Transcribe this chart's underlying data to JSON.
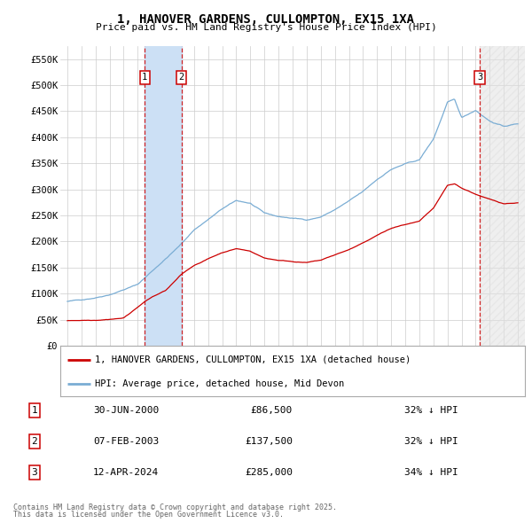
{
  "title": "1, HANOVER GARDENS, CULLOMPTON, EX15 1XA",
  "subtitle": "Price paid vs. HM Land Registry's House Price Index (HPI)",
  "ylim": [
    0,
    575000
  ],
  "yticks": [
    0,
    50000,
    100000,
    150000,
    200000,
    250000,
    300000,
    350000,
    400000,
    450000,
    500000,
    550000
  ],
  "ytick_labels": [
    "£0",
    "£50K",
    "£100K",
    "£150K",
    "£200K",
    "£250K",
    "£300K",
    "£350K",
    "£400K",
    "£450K",
    "£500K",
    "£550K"
  ],
  "xlim_start": 1994.5,
  "xlim_end": 2027.5,
  "transactions": [
    {
      "num": 1,
      "date": "30-JUN-2000",
      "price": 86500,
      "year": 2000.5,
      "pct": "32% ↓ HPI"
    },
    {
      "num": 2,
      "date": "07-FEB-2003",
      "price": 137500,
      "year": 2003.1,
      "pct": "32% ↓ HPI"
    },
    {
      "num": 3,
      "date": "12-APR-2024",
      "price": 285000,
      "year": 2024.3,
      "pct": "34% ↓ HPI"
    }
  ],
  "legend_entries": [
    "1, HANOVER GARDENS, CULLOMPTON, EX15 1XA (detached house)",
    "HPI: Average price, detached house, Mid Devon"
  ],
  "footer_line1": "Contains HM Land Registry data © Crown copyright and database right 2025.",
  "footer_line2": "This data is licensed under the Open Government Licence v3.0.",
  "red_line_color": "#cc0000",
  "blue_line_color": "#7aadd4",
  "shade1_color": "#cce0f5",
  "background_color": "#ffffff",
  "grid_color": "#cccccc"
}
